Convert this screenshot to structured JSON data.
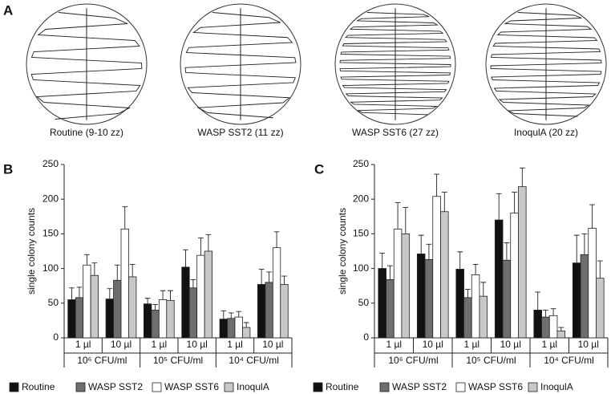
{
  "figure": {
    "panel_labels": [
      "A",
      "B",
      "C"
    ],
    "plates": [
      "Routine (9-10 zz)",
      "WASP SST2 (11 zz)",
      "WASP SST6 (27 zz)",
      "InoqulA (20 zz)"
    ]
  },
  "chart_data": [
    {
      "type": "bar",
      "ylabel": "single colony counts",
      "categories": [
        "1 µl",
        "10 µl",
        "1 µl",
        "10 µl",
        "1 µl",
        "10 µl"
      ],
      "groups": [
        "10⁶ CFU/ml",
        "10⁵ CFU/ml",
        "10⁴ CFU/ml"
      ],
      "ylim": [
        0,
        250
      ],
      "yticks": [
        0,
        50,
        100,
        150,
        200,
        250
      ],
      "series": [
        {
          "name": "Routine",
          "color": "#111111",
          "values": [
            55,
            56,
            49,
            102,
            27,
            77
          ],
          "errors": [
            17,
            15,
            8,
            25,
            12,
            22
          ]
        },
        {
          "name": "WASP SST2",
          "color": "#6e6e6e",
          "values": [
            58,
            83,
            40,
            72,
            28,
            80
          ],
          "errors": [
            15,
            22,
            8,
            12,
            8,
            15
          ]
        },
        {
          "name": "WASP SST6",
          "color": "#ffffff",
          "values": [
            105,
            157,
            55,
            119,
            30,
            130
          ],
          "errors": [
            15,
            32,
            13,
            25,
            8,
            23
          ]
        },
        {
          "name": "InoqulA",
          "color": "#c8c8c8",
          "values": [
            90,
            88,
            54,
            125,
            15,
            77
          ],
          "errors": [
            18,
            18,
            14,
            24,
            7,
            12
          ]
        }
      ]
    },
    {
      "type": "bar",
      "ylabel": "single colony counts",
      "categories": [
        "1 µl",
        "10 µl",
        "1 µl",
        "10 µl",
        "1 µl",
        "10 µl"
      ],
      "groups": [
        "10⁶ CFU/ml",
        "10⁵ CFU/ml",
        "10⁴ CFU/ml"
      ],
      "ylim": [
        0,
        250
      ],
      "yticks": [
        0,
        50,
        100,
        150,
        200,
        250
      ],
      "series": [
        {
          "name": "Routine",
          "color": "#111111",
          "values": [
            100,
            121,
            99,
            170,
            40,
            108
          ],
          "errors": [
            22,
            27,
            25,
            38,
            26,
            40
          ]
        },
        {
          "name": "WASP SST2",
          "color": "#6e6e6e",
          "values": [
            84,
            113,
            58,
            112,
            30,
            120
          ],
          "errors": [
            20,
            22,
            12,
            25,
            10,
            30
          ]
        },
        {
          "name": "WASP SST6",
          "color": "#ffffff",
          "values": [
            157,
            204,
            91,
            180,
            32,
            158
          ],
          "errors": [
            38,
            32,
            15,
            30,
            10,
            34
          ]
        },
        {
          "name": "InoqulA",
          "color": "#c8c8c8",
          "values": [
            150,
            182,
            60,
            218,
            10,
            86
          ],
          "errors": [
            38,
            28,
            20,
            27,
            5,
            25
          ]
        }
      ]
    }
  ]
}
